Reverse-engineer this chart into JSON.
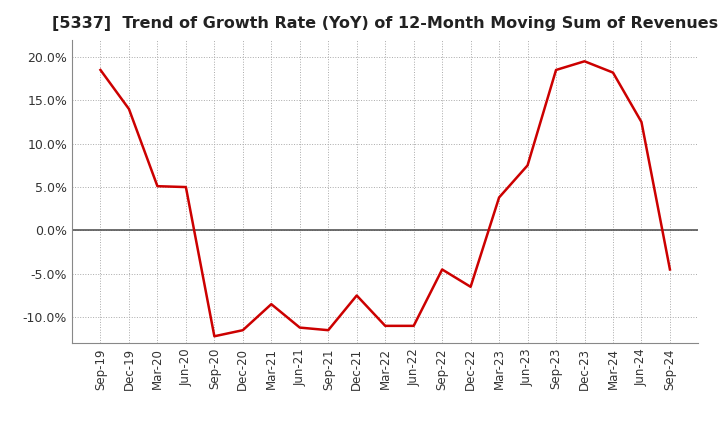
{
  "title": "[5337]  Trend of Growth Rate (YoY) of 12-Month Moving Sum of Revenues",
  "title_fontsize": 11.5,
  "line_color": "#cc0000",
  "background_color": "#ffffff",
  "grid_color": "#aaaaaa",
  "ylim": [
    -13.0,
    22.0
  ],
  "yticks": [
    -10.0,
    -5.0,
    0.0,
    5.0,
    10.0,
    15.0,
    20.0
  ],
  "x_labels": [
    "Sep-19",
    "Dec-19",
    "Mar-20",
    "Jun-20",
    "Sep-20",
    "Dec-20",
    "Mar-21",
    "Jun-21",
    "Sep-21",
    "Dec-21",
    "Mar-22",
    "Jun-22",
    "Sep-22",
    "Dec-22",
    "Mar-23",
    "Jun-23",
    "Sep-23",
    "Dec-23",
    "Mar-24",
    "Jun-24",
    "Sep-24"
  ],
  "values": [
    18.5,
    14.0,
    5.1,
    5.0,
    -12.2,
    -11.5,
    -8.5,
    -11.2,
    -11.5,
    -7.5,
    -11.0,
    -11.0,
    -4.5,
    -6.5,
    3.8,
    7.5,
    18.5,
    19.5,
    18.2,
    12.5,
    -4.5
  ]
}
